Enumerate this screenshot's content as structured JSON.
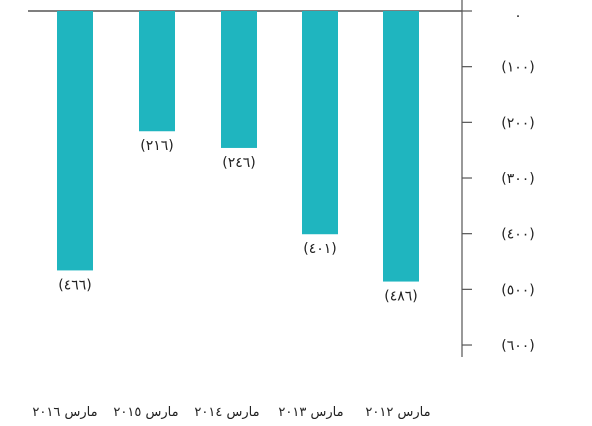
{
  "chart_data": {
    "type": "bar",
    "orientation": "vertical-negative",
    "categories": [
      "مارس ٢٠١٦",
      "مارس ٢٠١٥",
      "مارس ٢٠١٤",
      "مارس ٢٠١٣",
      "مارس ٢٠١٢"
    ],
    "values": [
      -466,
      -216,
      -246,
      -401,
      -486
    ],
    "value_labels": [
      "(٤٦٦)",
      "(٢١٦)",
      "(٢٤٦)",
      "(٤٠١)",
      "(٤٨٦)"
    ],
    "y_axis": {
      "position": "right",
      "ticks": [
        0,
        -100,
        -200,
        -300,
        -400,
        -500,
        -600
      ],
      "tick_labels": [
        "٠",
        "(١٠٠)",
        "(٢٠٠)",
        "(٣٠٠)",
        "(٤٠٠)",
        "(٥٠٠)",
        "(٦٠٠)"
      ]
    },
    "ylim": [
      -600,
      0
    ],
    "grid": false,
    "bar_color": "#1fb5bf",
    "axis_color": "#555555",
    "title": "",
    "xlabel": "",
    "ylabel": ""
  }
}
